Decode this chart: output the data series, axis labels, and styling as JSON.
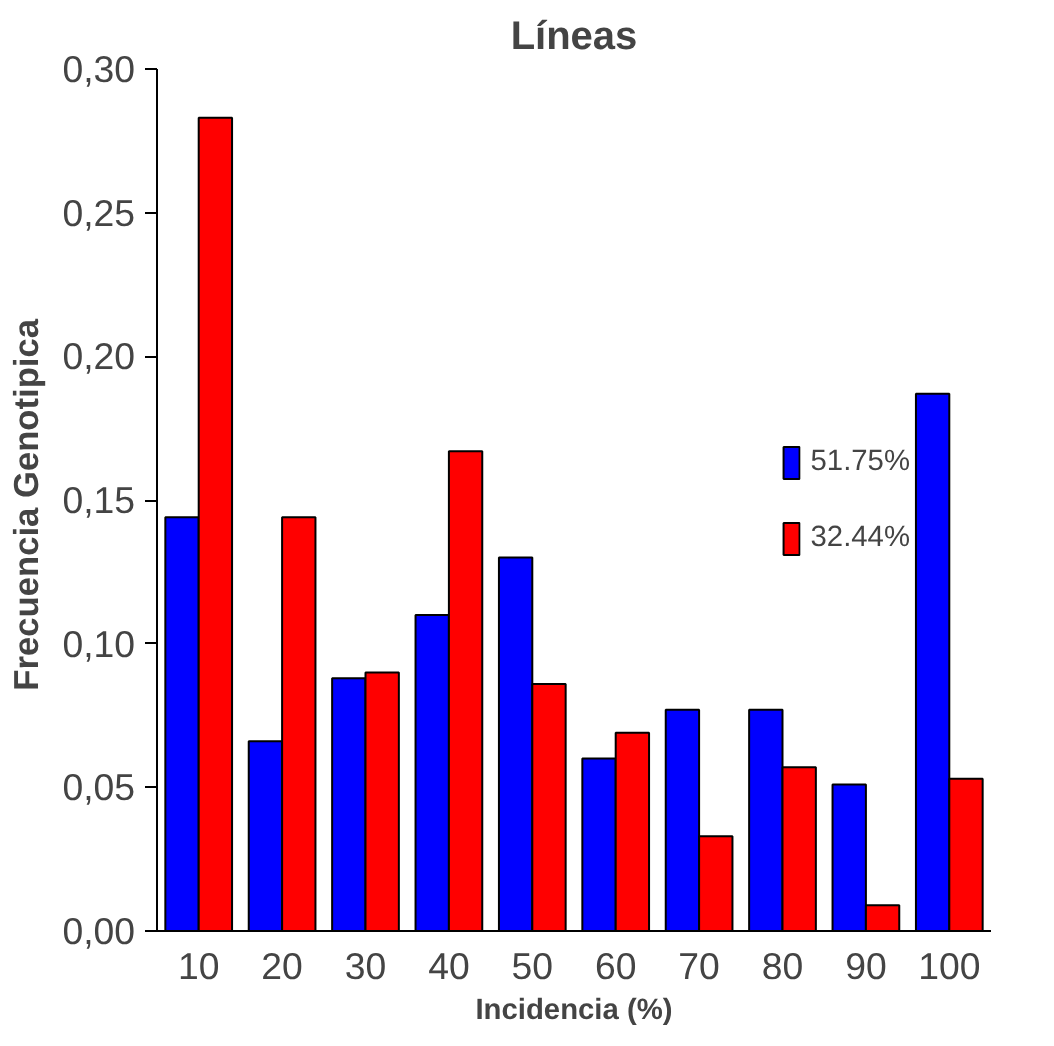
{
  "chart_data": {
    "type": "bar",
    "title": "Líneas",
    "xlabel": "Incidencia (%)",
    "ylabel": "Frecuencia  Genotipica",
    "categories": [
      "10",
      "20",
      "30",
      "40",
      "50",
      "60",
      "70",
      "80",
      "90",
      "100"
    ],
    "series": [
      {
        "name": "51.75%",
        "color": "#0000ff",
        "values": [
          0.144,
          0.066,
          0.088,
          0.11,
          0.13,
          0.06,
          0.077,
          0.077,
          0.051,
          0.187
        ]
      },
      {
        "name": "32.44%",
        "color": "#ff0000",
        "values": [
          0.283,
          0.144,
          0.09,
          0.167,
          0.086,
          0.069,
          0.033,
          0.057,
          0.009,
          0.053
        ]
      }
    ],
    "ylim": [
      0,
      0.3
    ],
    "yticks": [
      {
        "value": 0,
        "label": "0,00"
      },
      {
        "value": 0.05,
        "label": "0,05"
      },
      {
        "value": 0.1,
        "label": "0,10"
      },
      {
        "value": 0.15,
        "label": "0,15"
      },
      {
        "value": 0.2,
        "label": "0,20"
      },
      {
        "value": 0.25,
        "label": "0,25"
      },
      {
        "value": 0.3,
        "label": "0,30"
      }
    ],
    "grid": false,
    "legend": "right"
  }
}
